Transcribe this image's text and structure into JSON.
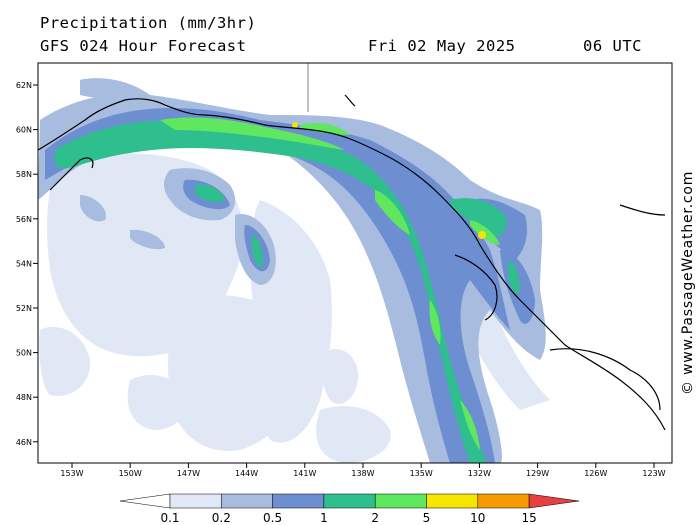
{
  "title": {
    "line1": "Precipitation (mm/3hr)",
    "line2": "GFS 024 Hour Forecast",
    "date": "Fri 02 May 2025",
    "time": "06 UTC"
  },
  "credit": "© www.PassageWeather.com",
  "lat_labels": [
    "62N",
    "60N",
    "58N",
    "56N",
    "54N",
    "52N",
    "50N",
    "48N",
    "46N"
  ],
  "lon_labels": [
    "153W",
    "150W",
    "147W",
    "144W",
    "141W",
    "138W",
    "135W",
    "132W",
    "129W",
    "126W",
    "123W"
  ],
  "legend": {
    "ticks": [
      "0.1",
      "0.2",
      "0.5",
      "1",
      "2",
      "5",
      "10",
      "15"
    ],
    "colors": [
      "#ffffff",
      "#e1e8f5",
      "#a8bcdf",
      "#6d8ed1",
      "#2fbf8f",
      "#5fe85f",
      "#f5e500",
      "#f59a00",
      "#e84040"
    ]
  },
  "colors": {
    "land_border": "#000000",
    "frame": "#000000"
  }
}
